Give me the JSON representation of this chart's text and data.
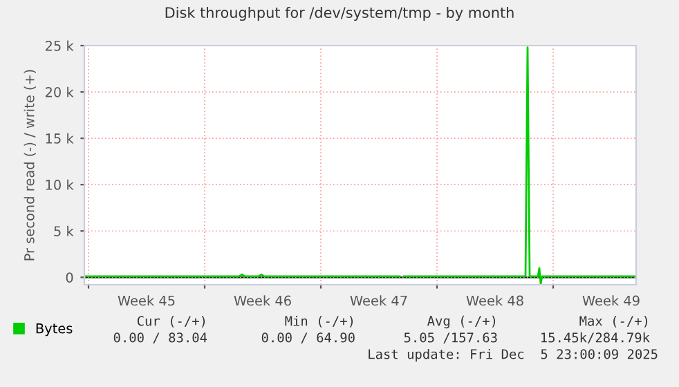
{
  "chart_data": {
    "type": "line",
    "title": "Disk throughput for /dev/system/tmp - by month",
    "ylabel": "Pr second read (-) / write (+)",
    "xlim": [
      "2025-11-02T18:00",
      "2025-12-06T00:00"
    ],
    "xticks": [
      {
        "value": "2025-11-03",
        "label": null
      },
      {
        "value": "2025-11-06T12:00",
        "label": "Week 45"
      },
      {
        "value": "2025-11-10",
        "label": null
      },
      {
        "value": "2025-11-13T12:00",
        "label": "Week 46"
      },
      {
        "value": "2025-11-17",
        "label": null
      },
      {
        "value": "2025-11-20T12:00",
        "label": "Week 47"
      },
      {
        "value": "2025-11-24",
        "label": null
      },
      {
        "value": "2025-11-27T12:00",
        "label": "Week 48"
      },
      {
        "value": "2025-12-01",
        "label": null
      },
      {
        "value": "2025-12-04T12:00",
        "label": "Week 49"
      }
    ],
    "ylim": [
      -800,
      25000
    ],
    "yticks": [
      0,
      {
        "value": 5000,
        "label": "5 k"
      },
      {
        "value": 10000,
        "label": "10 k"
      },
      {
        "value": 15000,
        "label": "15 k"
      },
      {
        "value": 20000,
        "label": "20 k"
      },
      {
        "value": 25000,
        "label": "25 k"
      }
    ],
    "grid": true,
    "legend": "bottom left",
    "series": [
      {
        "name": "Bytes",
        "color": "#00cc00",
        "x": [
          "2025-11-02T18:00",
          "2025-11-12T02:00",
          "2025-11-12T06:00",
          "2025-11-12T10:00",
          "2025-11-13T06:00",
          "2025-11-13T10:00",
          "2025-11-13T14:00",
          "2025-11-21T18:00",
          "2025-11-21T20:00",
          "2025-11-22T00:00",
          "2025-11-29T08:00",
          "2025-11-29T11:00",
          "2025-11-29T14:00",
          "2025-11-30T02:00",
          "2025-11-30T04:00",
          "2025-11-30T06:00",
          "2025-11-30T08:00",
          "2025-12-06T00:00"
        ],
        "values": [
          100,
          100,
          300,
          100,
          100,
          300,
          100,
          100,
          null,
          100,
          100,
          24800,
          100,
          100,
          1000,
          -700,
          100,
          100
        ]
      }
    ],
    "annotations": [
      "Cur (-/+)",
      "Min (-/+)",
      "Avg (-/+)",
      "Max (-/+)",
      "0.00 / 83.04",
      "0.00 / 64.90",
      "5.05 /157.63",
      "15.45k/284.79k",
      "Last update: Fri Dec  5 23:00:09 2025"
    ]
  }
}
